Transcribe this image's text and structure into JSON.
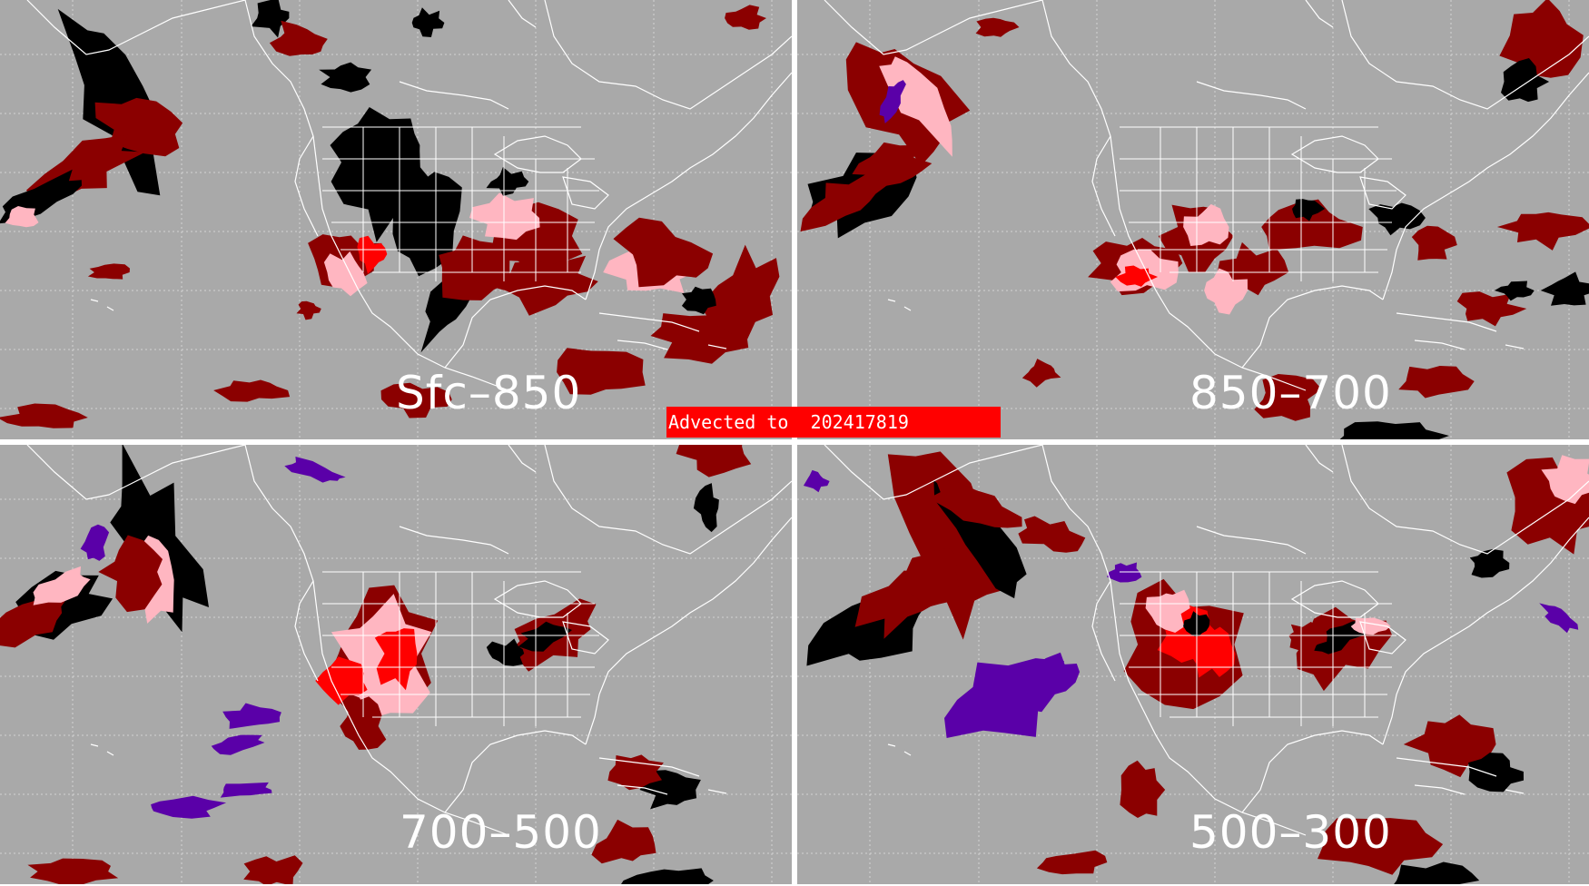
{
  "banner": {
    "prefix": "Advected to",
    "time": "202417819"
  },
  "panels": [
    {
      "id": "sfc-850",
      "label": "Sfc–850"
    },
    {
      "id": "850-700",
      "label": "850–700"
    },
    {
      "id": "700-500",
      "label": "700–500"
    },
    {
      "id": "500-300",
      "label": "500–300"
    }
  ],
  "colors": {
    "background": "#a9a9a9",
    "dark_red": "#8b0000",
    "red": "#ff0000",
    "pink": "#ffb6c1",
    "black": "#000000",
    "purple": "#5a00a8",
    "borders": "#ffffff",
    "divider": "#ffffff"
  }
}
